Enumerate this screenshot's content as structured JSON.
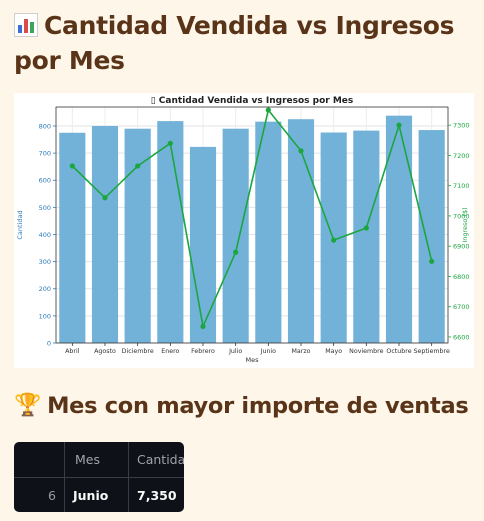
{
  "page": {
    "title": "Cantidad Vendida vs Ingresos por Mes",
    "title_icon": "bar-chart-icon",
    "section_title": "Mes con mayor importe de ventas",
    "section_icon": "trophy-icon",
    "section_icon_glyph": "🏆"
  },
  "chart_data": {
    "type": "bar",
    "title": "Cantidad Vendida vs Ingresos por Mes",
    "title_prefix": "▯",
    "xlabel": "Mes",
    "ylabel": "Cantidad",
    "y2label": "Ingreso ($)",
    "categories": [
      "Abril",
      "Agosto",
      "Diciembre",
      "Enero",
      "Febrero",
      "Julio",
      "Junio",
      "Marzo",
      "Mayo",
      "Noviembre",
      "Octubre",
      "Septiembre"
    ],
    "ylim": [
      0,
      870
    ],
    "yticks": [
      0,
      100,
      200,
      300,
      400,
      500,
      600,
      700,
      800
    ],
    "y2lim": [
      6580,
      7360
    ],
    "y2ticks": [
      6600,
      6700,
      6800,
      6900,
      7000,
      7100,
      7200,
      7300
    ],
    "grid": true,
    "series": [
      {
        "name": "Cantidad",
        "type": "bar",
        "axis": "left",
        "color": "#6baed6",
        "values": [
          775,
          800,
          790,
          818,
          723,
          790,
          816,
          825,
          776,
          783,
          838,
          785
        ]
      },
      {
        "name": "Ingreso ($)",
        "type": "line",
        "axis": "right",
        "color": "#1ca640",
        "values": [
          7165,
          7060,
          7165,
          7240,
          6635,
          6880,
          7350,
          7215,
          6920,
          6960,
          7300,
          6850
        ]
      }
    ],
    "axis_colors": {
      "left": "#2b7bba",
      "right": "#1ca640"
    }
  },
  "table": {
    "columns": [
      "",
      "Mes",
      "Cantidad"
    ],
    "rows": [
      {
        "index": "6",
        "mes": "Junio",
        "cantidad": "7,350"
      }
    ]
  }
}
